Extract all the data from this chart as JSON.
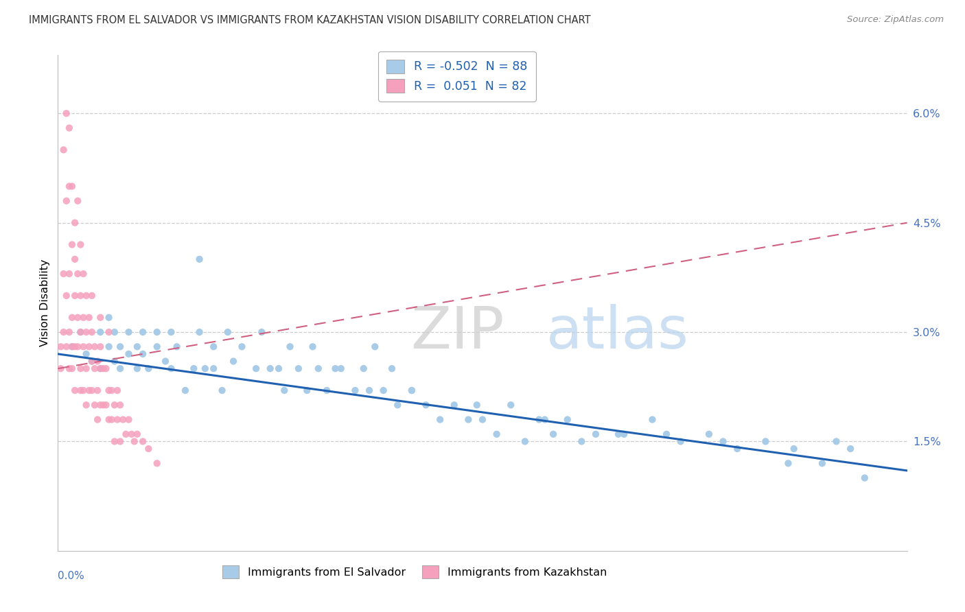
{
  "title": "IMMIGRANTS FROM EL SALVADOR VS IMMIGRANTS FROM KAZAKHSTAN VISION DISABILITY CORRELATION CHART",
  "source": "Source: ZipAtlas.com",
  "ylabel": "Vision Disability",
  "yticks": [
    0.015,
    0.03,
    0.045,
    0.06
  ],
  "ytick_labels": [
    "1.5%",
    "3.0%",
    "4.5%",
    "6.0%"
  ],
  "xlim": [
    0.0,
    0.3
  ],
  "ylim": [
    0.0,
    0.068
  ],
  "color_blue": "#a8cce8",
  "color_pink": "#f5a0bc",
  "trendline_blue": "#2060b0",
  "trendline_pink": "#d06080",
  "blue_r": "-0.502",
  "blue_n": "88",
  "pink_r": "0.051",
  "pink_n": "82",
  "legend1_label": "Immigrants from El Salvador",
  "legend2_label": "Immigrants from Kazakhstan",
  "watermark_zip": "ZIP",
  "watermark_atlas": "atlas",
  "blue_x": [
    0.005,
    0.008,
    0.01,
    0.012,
    0.015,
    0.015,
    0.018,
    0.018,
    0.02,
    0.02,
    0.022,
    0.022,
    0.025,
    0.025,
    0.028,
    0.028,
    0.03,
    0.03,
    0.032,
    0.035,
    0.035,
    0.038,
    0.04,
    0.04,
    0.042,
    0.045,
    0.048,
    0.05,
    0.05,
    0.052,
    0.055,
    0.055,
    0.058,
    0.06,
    0.062,
    0.065,
    0.07,
    0.072,
    0.075,
    0.078,
    0.08,
    0.082,
    0.085,
    0.088,
    0.09,
    0.092,
    0.095,
    0.098,
    0.1,
    0.105,
    0.108,
    0.11,
    0.112,
    0.115,
    0.118,
    0.12,
    0.125,
    0.13,
    0.135,
    0.14,
    0.145,
    0.15,
    0.155,
    0.16,
    0.165,
    0.17,
    0.175,
    0.18,
    0.185,
    0.19,
    0.2,
    0.21,
    0.22,
    0.23,
    0.24,
    0.25,
    0.26,
    0.27,
    0.28,
    0.125,
    0.148,
    0.172,
    0.198,
    0.215,
    0.235,
    0.258,
    0.275,
    0.285
  ],
  "blue_y": [
    0.028,
    0.03,
    0.027,
    0.026,
    0.03,
    0.025,
    0.028,
    0.032,
    0.03,
    0.026,
    0.028,
    0.025,
    0.027,
    0.03,
    0.028,
    0.025,
    0.03,
    0.027,
    0.025,
    0.028,
    0.03,
    0.026,
    0.03,
    0.025,
    0.028,
    0.022,
    0.025,
    0.03,
    0.04,
    0.025,
    0.028,
    0.025,
    0.022,
    0.03,
    0.026,
    0.028,
    0.025,
    0.03,
    0.025,
    0.025,
    0.022,
    0.028,
    0.025,
    0.022,
    0.028,
    0.025,
    0.022,
    0.025,
    0.025,
    0.022,
    0.025,
    0.022,
    0.028,
    0.022,
    0.025,
    0.02,
    0.022,
    0.02,
    0.018,
    0.02,
    0.018,
    0.018,
    0.016,
    0.02,
    0.015,
    0.018,
    0.016,
    0.018,
    0.015,
    0.016,
    0.016,
    0.018,
    0.015,
    0.016,
    0.014,
    0.015,
    0.014,
    0.012,
    0.014,
    0.022,
    0.02,
    0.018,
    0.016,
    0.016,
    0.015,
    0.012,
    0.015,
    0.01
  ],
  "pink_x": [
    0.001,
    0.001,
    0.002,
    0.002,
    0.003,
    0.003,
    0.003,
    0.004,
    0.004,
    0.004,
    0.004,
    0.005,
    0.005,
    0.005,
    0.005,
    0.006,
    0.006,
    0.006,
    0.006,
    0.007,
    0.007,
    0.007,
    0.008,
    0.008,
    0.008,
    0.008,
    0.009,
    0.009,
    0.009,
    0.01,
    0.01,
    0.01,
    0.01,
    0.011,
    0.011,
    0.011,
    0.012,
    0.012,
    0.012,
    0.013,
    0.013,
    0.013,
    0.014,
    0.014,
    0.014,
    0.015,
    0.015,
    0.015,
    0.016,
    0.016,
    0.017,
    0.017,
    0.018,
    0.018,
    0.019,
    0.019,
    0.02,
    0.02,
    0.021,
    0.021,
    0.022,
    0.022,
    0.023,
    0.024,
    0.025,
    0.026,
    0.027,
    0.028,
    0.03,
    0.032,
    0.035,
    0.002,
    0.003,
    0.004,
    0.005,
    0.006,
    0.007,
    0.008,
    0.009,
    0.012,
    0.015,
    0.018
  ],
  "pink_y": [
    0.028,
    0.025,
    0.038,
    0.03,
    0.048,
    0.035,
    0.028,
    0.05,
    0.038,
    0.03,
    0.025,
    0.042,
    0.032,
    0.028,
    0.025,
    0.04,
    0.035,
    0.028,
    0.022,
    0.038,
    0.032,
    0.028,
    0.035,
    0.03,
    0.025,
    0.022,
    0.032,
    0.028,
    0.022,
    0.035,
    0.03,
    0.025,
    0.02,
    0.032,
    0.028,
    0.022,
    0.03,
    0.026,
    0.022,
    0.028,
    0.025,
    0.02,
    0.026,
    0.022,
    0.018,
    0.028,
    0.025,
    0.02,
    0.025,
    0.02,
    0.025,
    0.02,
    0.022,
    0.018,
    0.022,
    0.018,
    0.02,
    0.015,
    0.022,
    0.018,
    0.02,
    0.015,
    0.018,
    0.016,
    0.018,
    0.016,
    0.015,
    0.016,
    0.015,
    0.014,
    0.012,
    0.055,
    0.06,
    0.058,
    0.05,
    0.045,
    0.048,
    0.042,
    0.038,
    0.035,
    0.032,
    0.03
  ]
}
